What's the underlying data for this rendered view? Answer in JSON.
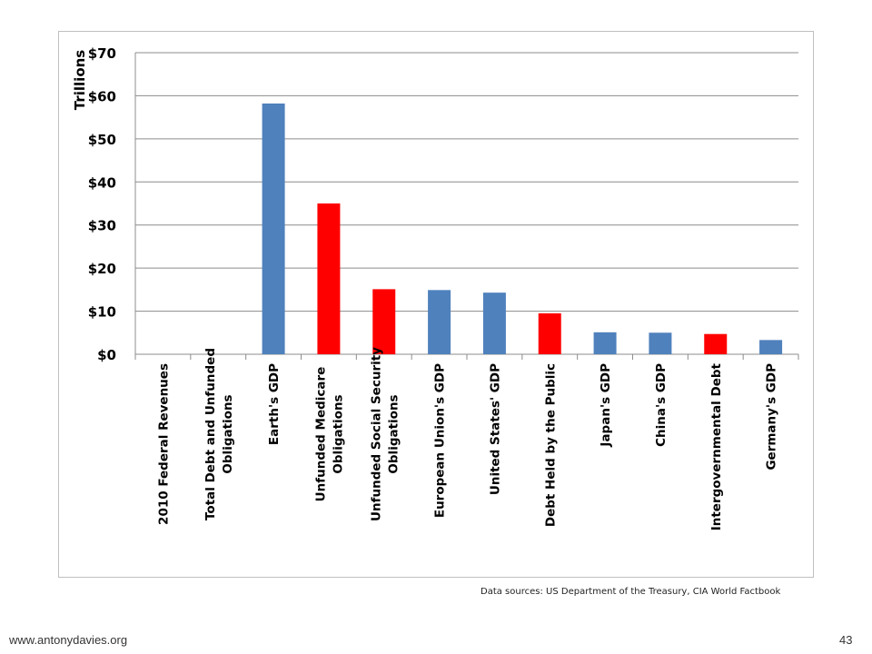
{
  "chart_data": {
    "type": "bar",
    "ylabel": "Trillions",
    "ylim": [
      0,
      70
    ],
    "yticks": [
      0,
      10,
      20,
      30,
      40,
      50,
      60,
      70
    ],
    "ytick_labels": [
      "$0",
      "$10",
      "$20",
      "$30",
      "$40",
      "$50",
      "$60",
      "$70"
    ],
    "grid": true,
    "categories": [
      [
        "2010 Federal Revenues"
      ],
      [
        "Total Debt and Unfunded",
        "Obligations"
      ],
      [
        "Earth's GDP"
      ],
      [
        "Unfunded Medicare",
        "Obligations"
      ],
      [
        "Unfunded Social Security",
        "Obligations"
      ],
      [
        "European Union's GDP"
      ],
      [
        "United States' GDP"
      ],
      [
        "Debt Held by the Public"
      ],
      [
        "Japan's GDP"
      ],
      [
        "China's GDP"
      ],
      [
        "Intergovernmental Debt"
      ],
      [
        "Germany's GDP"
      ]
    ],
    "values": [
      null,
      null,
      58.2,
      35.0,
      15.1,
      14.9,
      14.3,
      9.5,
      5.1,
      5.0,
      4.7,
      3.3
    ],
    "bar_colors": [
      "#4f81bd",
      "#ff0000",
      "#4f81bd",
      "#ff0000",
      "#ff0000",
      "#4f81bd",
      "#4f81bd",
      "#ff0000",
      "#4f81bd",
      "#4f81bd",
      "#ff0000",
      "#4f81bd"
    ]
  },
  "sources": "Data sources: US Department of the Treasury, CIA World Factbook",
  "footer": {
    "url": "www.antonydavies.org",
    "page": "43"
  }
}
